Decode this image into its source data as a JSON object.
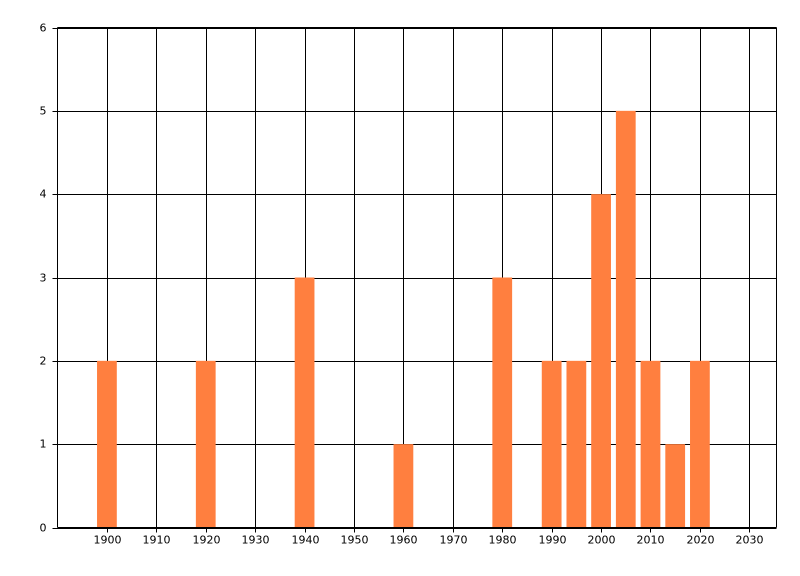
{
  "chart_data": {
    "type": "bar",
    "x": [
      1900,
      1920,
      1940,
      1960,
      1980,
      1990,
      1995,
      2000,
      2005,
      2010,
      2015,
      2020
    ],
    "values": [
      2,
      2,
      3,
      1,
      3,
      2,
      2,
      4,
      5,
      2,
      1,
      2
    ],
    "color": "#ff7f3f",
    "xlim": [
      1890,
      2035.5
    ],
    "xticks": [
      1900,
      1910,
      1920,
      1930,
      1940,
      1950,
      1960,
      1970,
      1980,
      1990,
      2000,
      2010,
      2020,
      2030
    ],
    "ylim": [
      0,
      6
    ],
    "yticks": [
      0,
      1,
      2,
      3,
      4,
      5,
      6
    ],
    "grid": true
  }
}
